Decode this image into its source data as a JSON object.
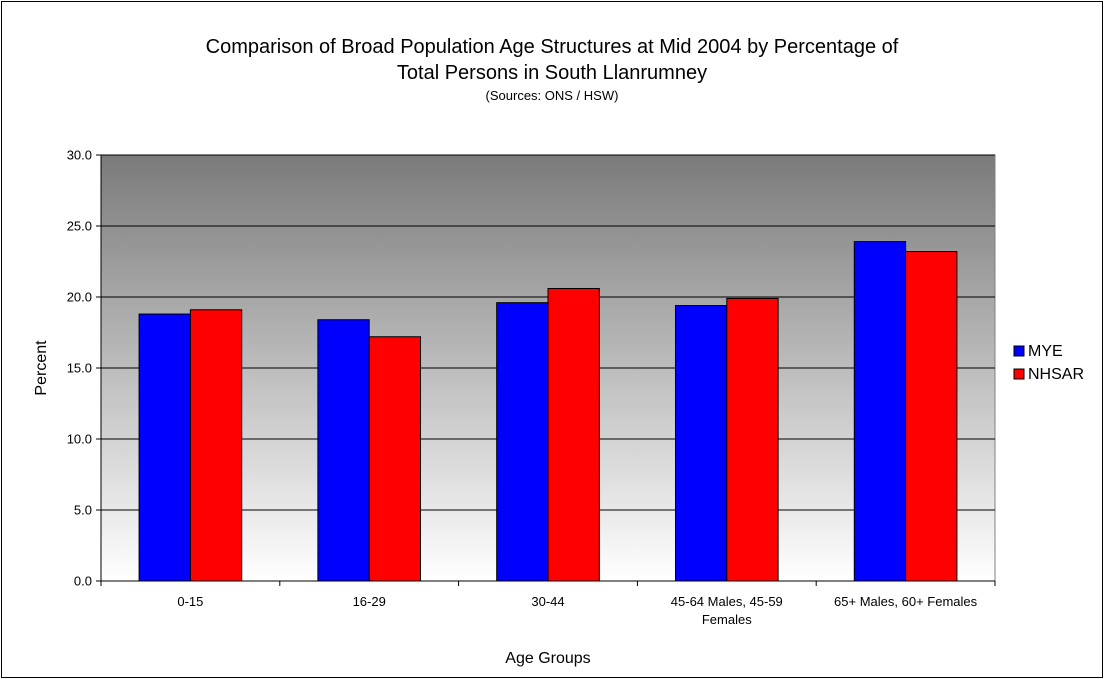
{
  "chart_data": {
    "type": "bar",
    "title_line1": "Comparison of Broad Population Age Structures at Mid 2004 by Percentage of",
    "title_line2": "Total Persons in South Llanrumney",
    "subtitle": "(Sources: ONS / HSW)",
    "xlabel": "Age Groups",
    "ylabel": "Percent",
    "ylim": [
      0,
      30
    ],
    "yticks": [
      "0.0",
      "5.0",
      "10.0",
      "15.0",
      "20.0",
      "25.0",
      "30.0"
    ],
    "categories": [
      [
        "0-15"
      ],
      [
        "16-29"
      ],
      [
        "30-44"
      ],
      [
        "45-64 Males, 45-59",
        "Females"
      ],
      [
        "65+ Males, 60+ Females"
      ]
    ],
    "series": [
      {
        "name": "MYE",
        "color": "#0000ff",
        "values": [
          18.8,
          18.4,
          19.6,
          19.4,
          23.9
        ]
      },
      {
        "name": "NHSAR",
        "color": "#ff0000",
        "values": [
          19.1,
          17.2,
          20.6,
          19.9,
          23.2
        ]
      }
    ],
    "grid": true,
    "legend": "right",
    "plot_background": "gradient dark gray to white"
  }
}
